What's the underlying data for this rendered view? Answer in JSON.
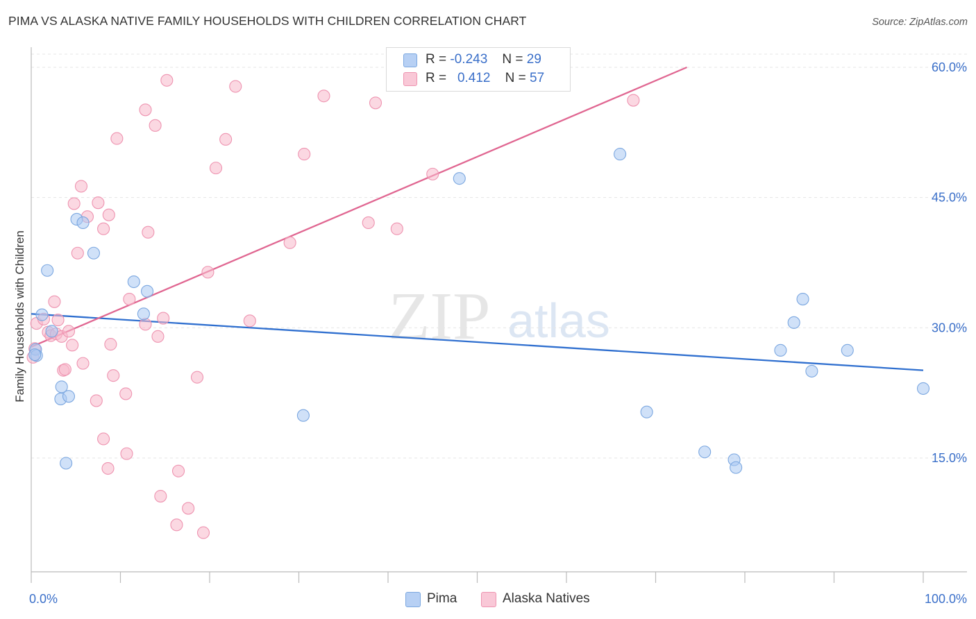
{
  "title": "PIMA VS ALASKA NATIVE FAMILY HOUSEHOLDS WITH CHILDREN CORRELATION CHART",
  "source": "Source: ZipAtlas.com",
  "watermark": {
    "zip": "ZIP",
    "atlas": "atlas"
  },
  "legend": {
    "pima": {
      "r_label": "R =",
      "r_value": "-0.243",
      "n_label": "N =",
      "n_value": "29"
    },
    "alaska": {
      "r_label": "R =",
      "r_value": "0.412",
      "n_label": "N =",
      "n_value": "57"
    }
  },
  "bottom_legend": {
    "pima": "Pima",
    "alaska": "Alaska Natives"
  },
  "colors": {
    "pima_fill": "#a9c8f2",
    "pima_stroke": "#7ba7e0",
    "pima_line": "#2f6fcf",
    "alaska_fill": "#f7b8cb",
    "alaska_stroke": "#ee93b0",
    "alaska_line": "#e06691",
    "grid": "#e5e5e5",
    "axis_label": "#3a6fc9"
  },
  "chart_data": {
    "type": "scatter",
    "title": "PIMA VS ALASKA NATIVE FAMILY HOUSEHOLDS WITH CHILDREN CORRELATION CHART",
    "xlabel": "",
    "ylabel": "Family Households with Children",
    "xlim": [
      0,
      100
    ],
    "ylim": [
      0,
      61.5
    ],
    "x_tick_labels": [
      "0.0%",
      "100.0%"
    ],
    "y_ticks": [
      15,
      30,
      45,
      60
    ],
    "y_tick_labels": [
      "15.0%",
      "30.0%",
      "45.0%",
      "60.0%"
    ],
    "grid": true,
    "legend_position": "top-center",
    "series": [
      {
        "name": "Pima",
        "points": [
          [
            0.5,
            27.5
          ],
          [
            0.6,
            26.8
          ],
          [
            1.2,
            31.5
          ],
          [
            1.8,
            36.6
          ],
          [
            2.3,
            29.6
          ],
          [
            3.3,
            21.8
          ],
          [
            3.4,
            23.2
          ],
          [
            3.9,
            14.4
          ],
          [
            4.2,
            22.1
          ],
          [
            5.1,
            42.5
          ],
          [
            5.8,
            42.1
          ],
          [
            7.0,
            38.6
          ],
          [
            11.5,
            35.3
          ],
          [
            12.6,
            31.6
          ],
          [
            13.0,
            34.2
          ],
          [
            30.5,
            19.9
          ],
          [
            48.0,
            47.2
          ],
          [
            66.0,
            50.0
          ],
          [
            69.0,
            20.3
          ],
          [
            75.5,
            15.7
          ],
          [
            78.8,
            14.8
          ],
          [
            79.0,
            13.9
          ],
          [
            84.0,
            27.4
          ],
          [
            85.5,
            30.6
          ],
          [
            86.5,
            33.3
          ],
          [
            87.5,
            25.0
          ],
          [
            91.5,
            27.4
          ],
          [
            100.0,
            23.0
          ],
          [
            0.4,
            26.9
          ]
        ],
        "trend": [
          [
            0,
            31.6
          ],
          [
            100,
            25.1
          ]
        ]
      },
      {
        "name": "Alaska Natives",
        "points": [
          [
            0.2,
            26.6
          ],
          [
            0.4,
            27.6
          ],
          [
            0.6,
            30.5
          ],
          [
            1.4,
            31.0
          ],
          [
            1.9,
            29.5
          ],
          [
            2.2,
            29.1
          ],
          [
            2.6,
            33.0
          ],
          [
            2.8,
            29.3
          ],
          [
            3.0,
            30.9
          ],
          [
            3.4,
            29.0
          ],
          [
            3.6,
            25.1
          ],
          [
            3.8,
            25.2
          ],
          [
            4.2,
            29.6
          ],
          [
            4.6,
            28.0
          ],
          [
            4.8,
            44.3
          ],
          [
            5.2,
            38.6
          ],
          [
            5.6,
            46.3
          ],
          [
            5.8,
            25.9
          ],
          [
            6.3,
            42.8
          ],
          [
            7.3,
            21.6
          ],
          [
            7.5,
            44.4
          ],
          [
            8.1,
            41.4
          ],
          [
            8.1,
            17.2
          ],
          [
            8.6,
            13.8
          ],
          [
            8.7,
            43.0
          ],
          [
            8.9,
            28.1
          ],
          [
            9.2,
            24.5
          ],
          [
            9.6,
            51.8
          ],
          [
            10.6,
            22.4
          ],
          [
            10.7,
            15.5
          ],
          [
            11.0,
            33.3
          ],
          [
            12.8,
            30.4
          ],
          [
            12.8,
            55.1
          ],
          [
            13.1,
            41.0
          ],
          [
            13.9,
            53.3
          ],
          [
            14.2,
            29.0
          ],
          [
            14.5,
            10.6
          ],
          [
            14.8,
            31.1
          ],
          [
            15.2,
            58.5
          ],
          [
            16.3,
            7.3
          ],
          [
            16.5,
            13.5
          ],
          [
            17.6,
            9.2
          ],
          [
            18.6,
            24.3
          ],
          [
            19.3,
            6.4
          ],
          [
            19.8,
            36.4
          ],
          [
            20.7,
            48.4
          ],
          [
            21.8,
            51.7
          ],
          [
            22.9,
            57.8
          ],
          [
            24.5,
            30.8
          ],
          [
            29.0,
            39.8
          ],
          [
            30.6,
            50.0
          ],
          [
            32.8,
            56.7
          ],
          [
            37.8,
            42.1
          ],
          [
            38.6,
            55.9
          ],
          [
            41.0,
            41.4
          ],
          [
            45.0,
            47.7
          ],
          [
            67.5,
            56.2
          ]
        ],
        "trend": [
          [
            0,
            27.8
          ],
          [
            73.5,
            60.0
          ]
        ]
      }
    ]
  }
}
